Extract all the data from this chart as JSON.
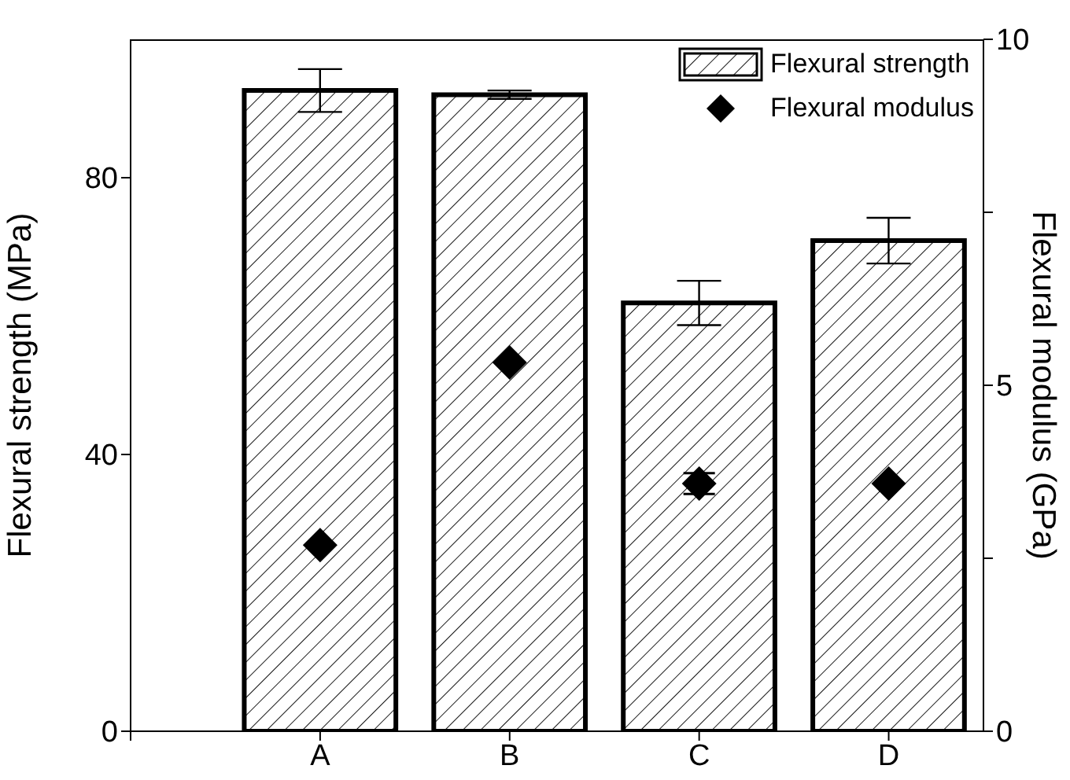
{
  "chart_data": {
    "type": "bar",
    "categories": [
      "A",
      "B",
      "C",
      "D"
    ],
    "ylabel": "Flexural strength (MPa)",
    "y2label": "Flexural modulus (GPa)",
    "ylim": [
      0,
      100
    ],
    "yticks": [
      0,
      40,
      80
    ],
    "y2lim": [
      0,
      10
    ],
    "y2ticks": [
      0,
      {
        "value": 2.5,
        "label": null
      },
      5,
      {
        "value": 7.5,
        "label": null
      },
      10
    ],
    "legend": "top right",
    "series": [
      {
        "name": "Flexural strength",
        "color": "#000000",
        "values": [
          92.6,
          92.0,
          61.9,
          70.9
        ],
        "errors": [
          3.1,
          0.6,
          3.2,
          3.3
        ]
      },
      {
        "name": "Flexural modulus",
        "type": "scatter",
        "axis": "y2",
        "marker": "diamond",
        "color": "#000000",
        "values": [
          2.69,
          5.33,
          3.58,
          3.58
        ],
        "errors": [
          null,
          null,
          0.15,
          null
        ]
      }
    ]
  }
}
